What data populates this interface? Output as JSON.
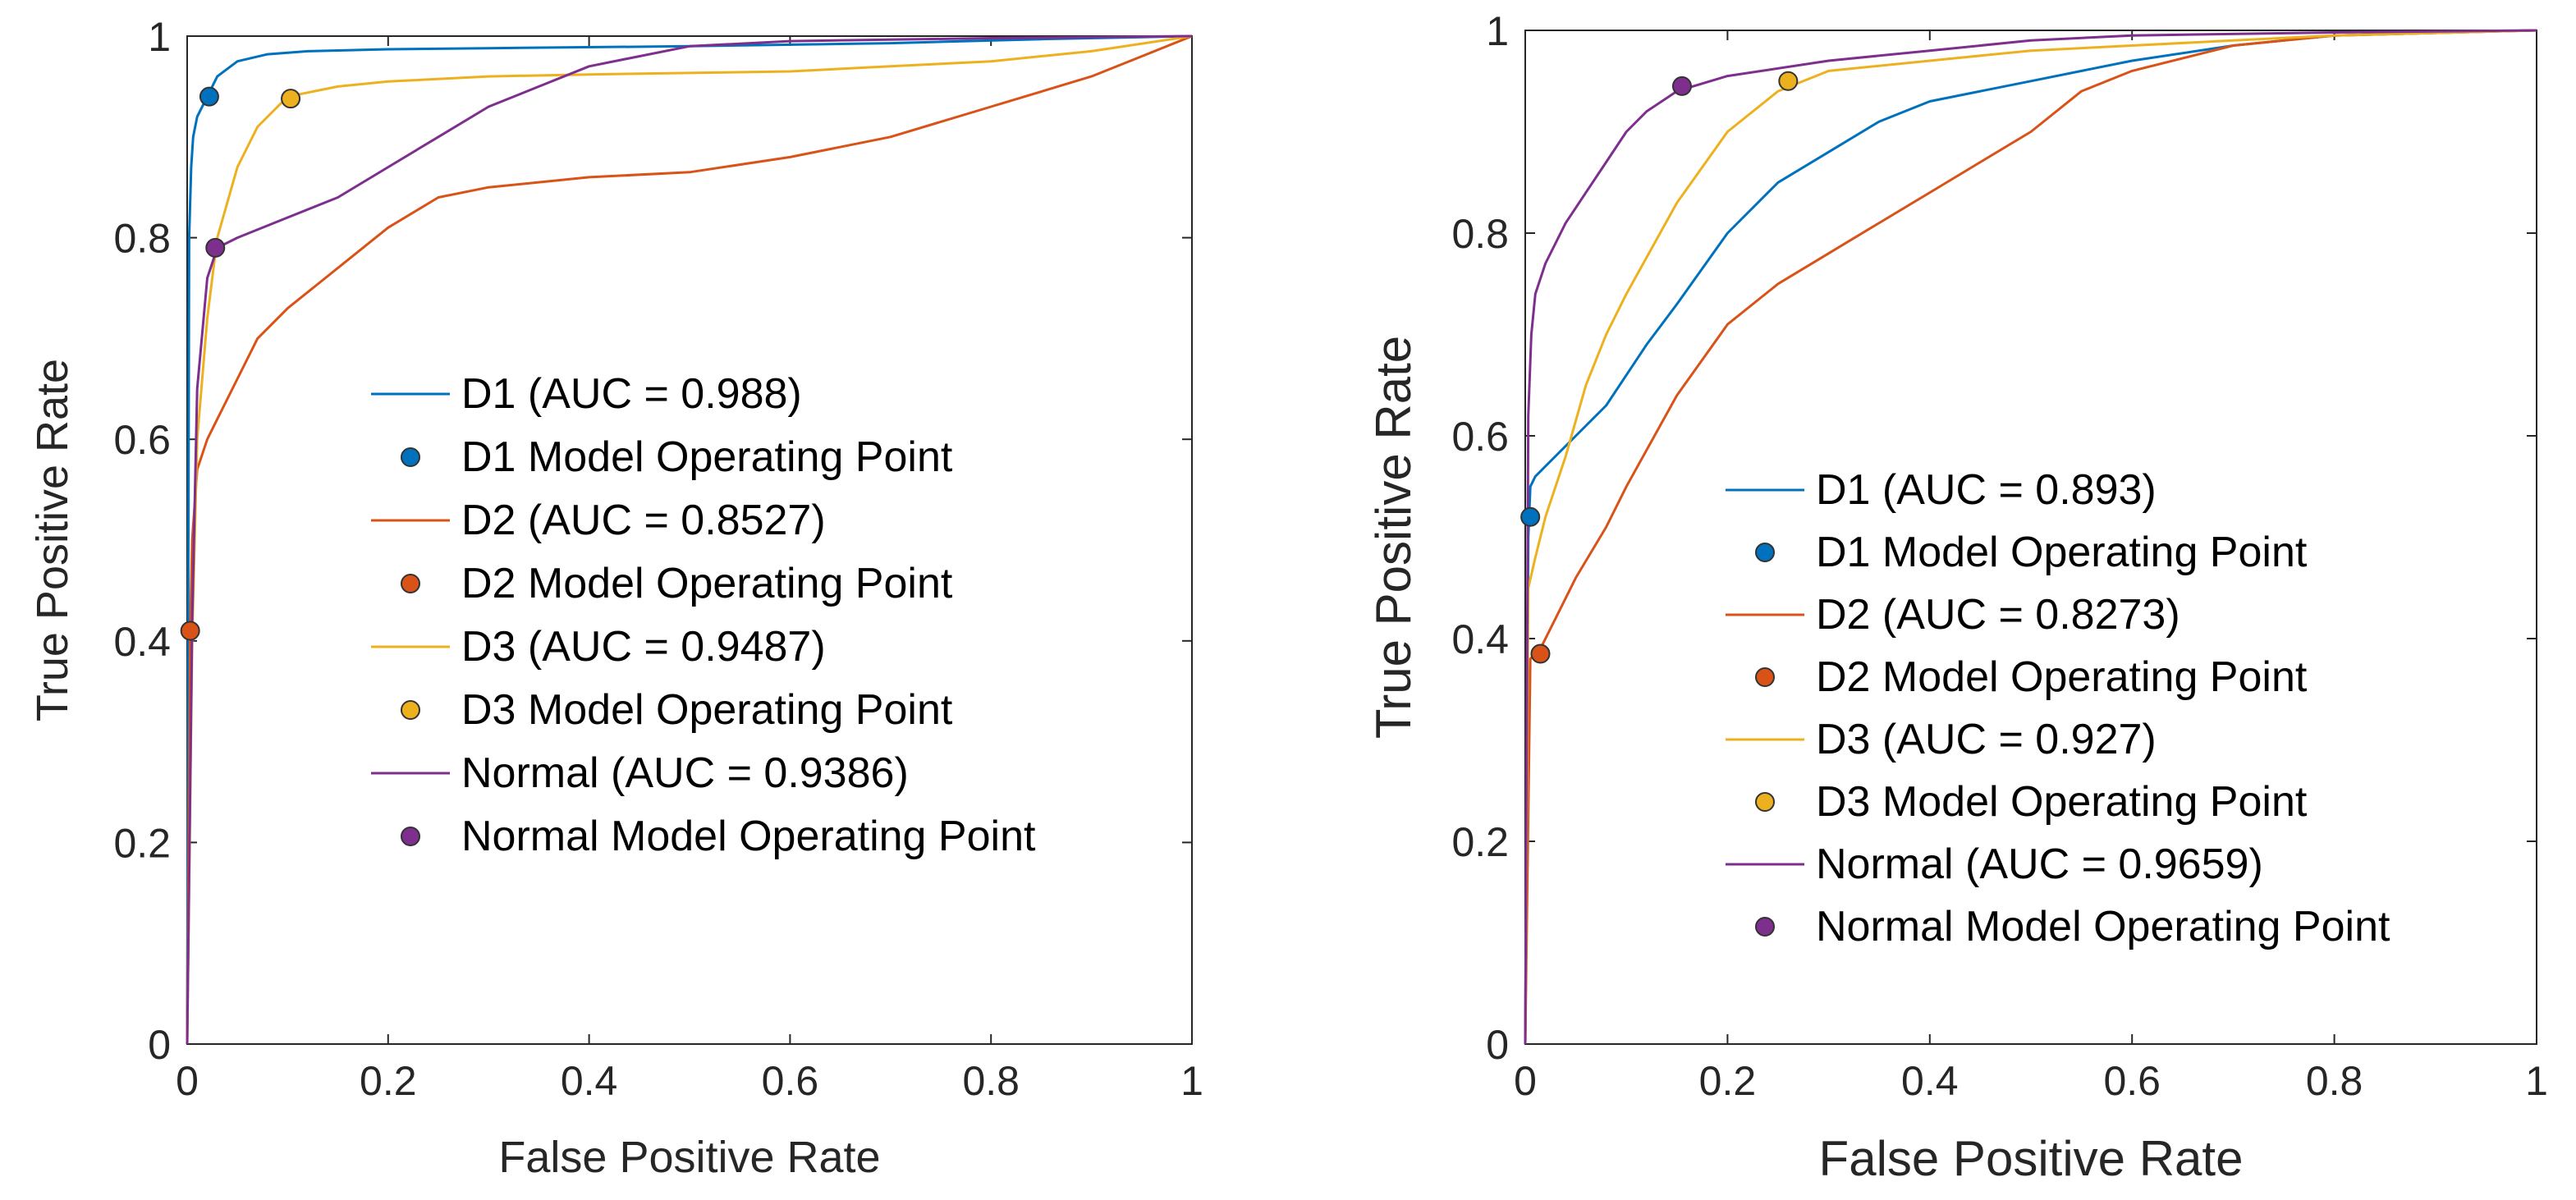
{
  "chart_data": [
    {
      "type": "line",
      "title": "",
      "xlabel": "False Positive Rate",
      "ylabel": "True Positive Rate",
      "xlim": [
        0,
        1
      ],
      "ylim": [
        0,
        1
      ],
      "xticks": [
        "0",
        "0.2",
        "0.4",
        "0.6",
        "0.8",
        "1"
      ],
      "yticks": [
        "0",
        "0.2",
        "0.4",
        "0.6",
        "0.8",
        "1"
      ],
      "legend_position": "center",
      "series": [
        {
          "name": "D1 (AUC = 0.988)",
          "color": "#0072BD",
          "x": [
            0,
            0.002,
            0.004,
            0.006,
            0.01,
            0.02,
            0.03,
            0.05,
            0.08,
            0.12,
            0.2,
            0.3,
            0.5,
            0.7,
            0.85,
            1
          ],
          "y": [
            0,
            0.8,
            0.87,
            0.9,
            0.92,
            0.94,
            0.96,
            0.975,
            0.982,
            0.985,
            0.987,
            0.988,
            0.99,
            0.993,
            0.997,
            1
          ]
        },
        {
          "name": "D2 (AUC = 0.8527)",
          "color": "#D95319",
          "x": [
            0,
            0.003,
            0.005,
            0.01,
            0.02,
            0.03,
            0.05,
            0.07,
            0.1,
            0.15,
            0.2,
            0.25,
            0.3,
            0.4,
            0.5,
            0.6,
            0.7,
            0.8,
            0.9,
            0.95,
            1
          ],
          "y": [
            0,
            0.41,
            0.5,
            0.57,
            0.6,
            0.62,
            0.66,
            0.7,
            0.73,
            0.77,
            0.81,
            0.84,
            0.85,
            0.86,
            0.865,
            0.88,
            0.9,
            0.93,
            0.96,
            0.98,
            1
          ]
        },
        {
          "name": "D3 (AUC = 0.9487)",
          "color": "#EDB120",
          "x": [
            0,
            0.005,
            0.01,
            0.02,
            0.03,
            0.05,
            0.07,
            0.1,
            0.15,
            0.2,
            0.3,
            0.4,
            0.6,
            0.7,
            0.8,
            0.9,
            1
          ],
          "y": [
            0,
            0.4,
            0.6,
            0.72,
            0.8,
            0.87,
            0.91,
            0.94,
            0.95,
            0.955,
            0.96,
            0.962,
            0.965,
            0.97,
            0.975,
            0.985,
            1
          ]
        },
        {
          "name": "Normal (AUC = 0.9386)",
          "color": "#7E2F8E",
          "x": [
            0,
            0.005,
            0.01,
            0.02,
            0.03,
            0.05,
            0.1,
            0.15,
            0.2,
            0.25,
            0.3,
            0.35,
            0.4,
            0.5,
            0.6,
            0.8,
            1
          ],
          "y": [
            0,
            0.42,
            0.65,
            0.76,
            0.79,
            0.8,
            0.82,
            0.84,
            0.87,
            0.9,
            0.93,
            0.95,
            0.97,
            0.99,
            0.995,
            0.998,
            1
          ]
        }
      ],
      "operating_points": [
        {
          "name": "D1 Model Operating Point",
          "color": "#0072BD",
          "x": 0.022,
          "y": 0.94
        },
        {
          "name": "D2 Model Operating Point",
          "color": "#D95319",
          "x": 0.003,
          "y": 0.41
        },
        {
          "name": "D3 Model Operating Point",
          "color": "#EDB120",
          "x": 0.103,
          "y": 0.938
        },
        {
          "name": "Normal Model Operating Point",
          "color": "#7E2F8E",
          "x": 0.028,
          "y": 0.79
        }
      ]
    },
    {
      "type": "line",
      "title": "",
      "xlabel": "False Positive Rate",
      "ylabel": "True Positive Rate",
      "xlim": [
        0,
        1
      ],
      "ylim": [
        0,
        1
      ],
      "xticks": [
        "0",
        "0.2",
        "0.4",
        "0.6",
        "0.8",
        "1"
      ],
      "yticks": [
        "0",
        "0.2",
        "0.4",
        "0.6",
        "0.8",
        "1"
      ],
      "legend_position": "center-right",
      "series": [
        {
          "name": "D1 (AUC = 0.893)",
          "color": "#0072BD",
          "x": [
            0,
            0.003,
            0.005,
            0.01,
            0.02,
            0.05,
            0.08,
            0.1,
            0.12,
            0.15,
            0.2,
            0.25,
            0.3,
            0.35,
            0.4,
            0.5,
            0.6,
            0.7,
            0.8,
            1
          ],
          "y": [
            0,
            0.5,
            0.55,
            0.56,
            0.57,
            0.6,
            0.63,
            0.66,
            0.69,
            0.73,
            0.8,
            0.85,
            0.88,
            0.91,
            0.93,
            0.95,
            0.97,
            0.985,
            0.995,
            1
          ]
        },
        {
          "name": "D2 (AUC = 0.8273)",
          "color": "#D95319",
          "x": [
            0,
            0.005,
            0.01,
            0.015,
            0.03,
            0.05,
            0.08,
            0.1,
            0.15,
            0.2,
            0.25,
            0.3,
            0.35,
            0.4,
            0.45,
            0.5,
            0.55,
            0.6,
            0.7,
            0.8,
            1
          ],
          "y": [
            0,
            0.38,
            0.385,
            0.39,
            0.42,
            0.46,
            0.51,
            0.55,
            0.64,
            0.71,
            0.75,
            0.78,
            0.81,
            0.84,
            0.87,
            0.9,
            0.94,
            0.96,
            0.985,
            0.995,
            1
          ]
        },
        {
          "name": "D3 (AUC = 0.927)",
          "color": "#EDB120",
          "x": [
            0,
            0.003,
            0.01,
            0.02,
            0.04,
            0.06,
            0.08,
            0.1,
            0.15,
            0.2,
            0.25,
            0.3,
            0.4,
            0.5,
            0.6,
            0.7,
            0.8,
            1
          ],
          "y": [
            0,
            0.45,
            0.48,
            0.52,
            0.58,
            0.65,
            0.7,
            0.74,
            0.83,
            0.9,
            0.94,
            0.96,
            0.97,
            0.98,
            0.985,
            0.99,
            0.995,
            1
          ]
        },
        {
          "name": "Normal (AUC = 0.9659)",
          "color": "#7E2F8E",
          "x": [
            0,
            0.003,
            0.006,
            0.01,
            0.02,
            0.04,
            0.06,
            0.08,
            0.1,
            0.12,
            0.15,
            0.2,
            0.3,
            0.4,
            0.5,
            0.6,
            0.8,
            1
          ],
          "y": [
            0,
            0.62,
            0.7,
            0.74,
            0.77,
            0.81,
            0.84,
            0.87,
            0.9,
            0.92,
            0.94,
            0.955,
            0.97,
            0.98,
            0.99,
            0.995,
            0.998,
            1
          ]
        }
      ],
      "operating_points": [
        {
          "name": "D1 Model Operating Point",
          "color": "#0072BD",
          "x": 0.005,
          "y": 0.52
        },
        {
          "name": "D2 Model Operating Point",
          "color": "#D95319",
          "x": 0.015,
          "y": 0.385
        },
        {
          "name": "D3 Model Operating Point",
          "color": "#EDB120",
          "x": 0.26,
          "y": 0.95
        },
        {
          "name": "Normal Model Operating Point",
          "color": "#7E2F8E",
          "x": 0.155,
          "y": 0.945
        }
      ]
    }
  ]
}
